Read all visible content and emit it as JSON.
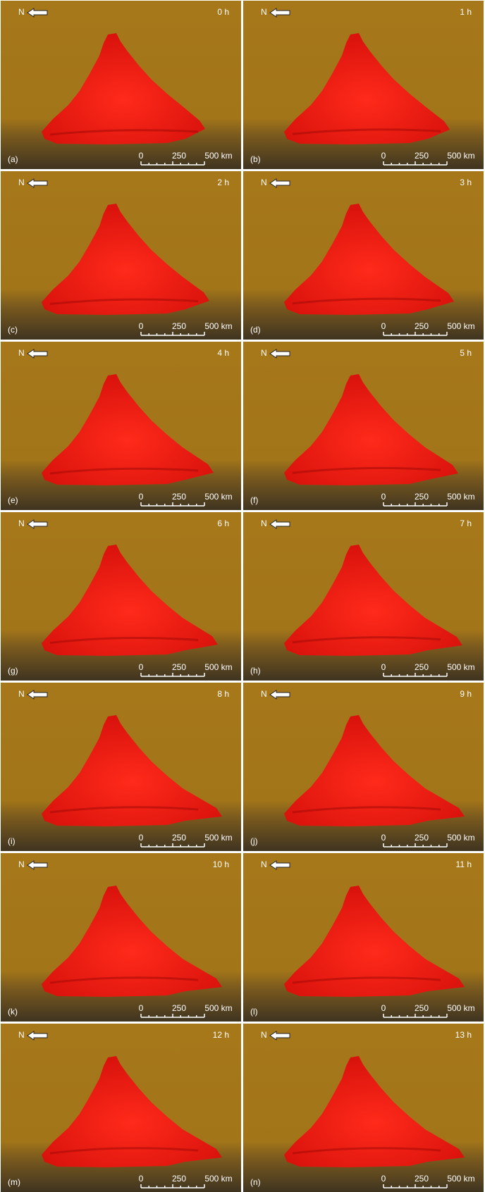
{
  "north": "N",
  "scale_labels": [
    "0",
    "250",
    "500 km"
  ],
  "panels": [
    {
      "label": "(a)",
      "time": "0 h"
    },
    {
      "label": "(b)",
      "time": "1 h"
    },
    {
      "label": "(c)",
      "time": "2 h"
    },
    {
      "label": "(d)",
      "time": "3 h"
    },
    {
      "label": "(e)",
      "time": "4 h"
    },
    {
      "label": "(f)",
      "time": "5 h"
    },
    {
      "label": "(g)",
      "time": "6 h"
    },
    {
      "label": "(h)",
      "time": "7 h"
    },
    {
      "label": "(i)",
      "time": "8 h"
    },
    {
      "label": "(j)",
      "time": "9 h"
    },
    {
      "label": "(k)",
      "time": "10 h"
    },
    {
      "label": "(l)",
      "time": "11 h"
    },
    {
      "label": "(m)",
      "time": "12 h"
    },
    {
      "label": "(n)",
      "time": "13 h"
    }
  ]
}
